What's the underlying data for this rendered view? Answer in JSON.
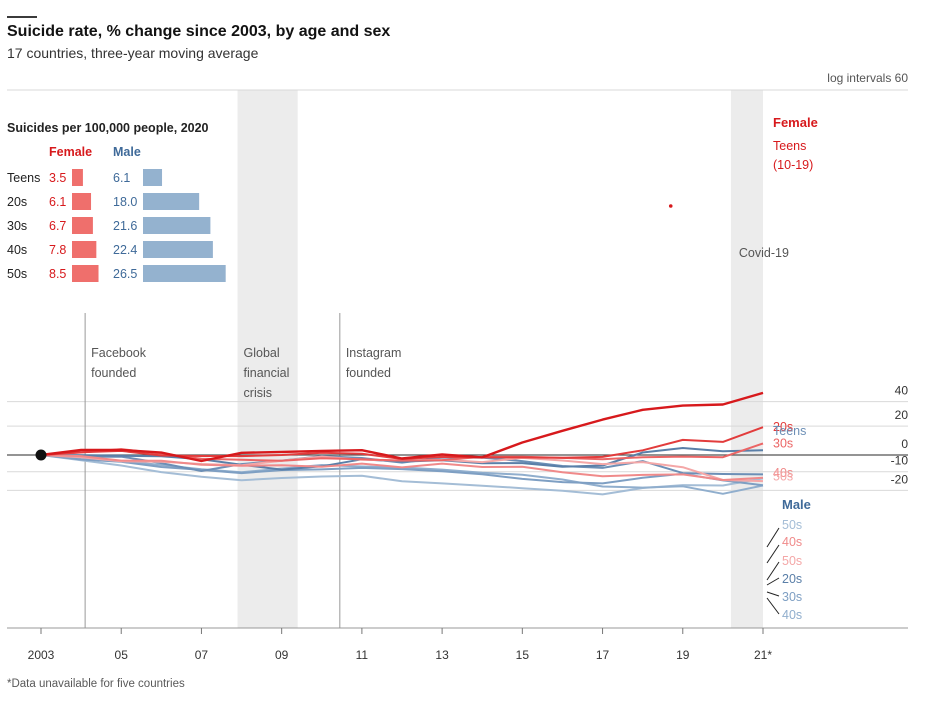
{
  "title": "Suicide rate, % change since 2003, by age and sex",
  "subtitle": "17 countries, three-year moving average",
  "footnote": "*Data unavailable for five countries",
  "colors": {
    "female": [
      "#d7191c",
      "#e23c3c",
      "#eb6565",
      "#f08a8a",
      "#f4a7a7"
    ],
    "male": [
      "#5a7fa8",
      "#6c8fb6",
      "#7e9fc3",
      "#90aecd",
      "#a4bdd6"
    ],
    "female_label": "#d7191c",
    "male_label": "#3f6a99",
    "bar_female": "#ef6f6c",
    "bar_male": "#94b2cf",
    "shade": "#ececec",
    "zero_line": "#555555",
    "grid": "#d9d9d9"
  },
  "chart_data": {
    "type": "line",
    "y_scale": "log",
    "y_axis_note": "log intervals 60",
    "y_ticks": [
      40,
      20,
      0,
      -10,
      -20
    ],
    "x_ticks": [
      "2003",
      "05",
      "07",
      "09",
      "11",
      "13",
      "15",
      "17",
      "19",
      "21*"
    ],
    "x": [
      2003,
      2004,
      2005,
      2006,
      2007,
      2008,
      2009,
      2010,
      2011,
      2012,
      2013,
      2014,
      2015,
      2016,
      2017,
      2018,
      2019,
      2020,
      2021
    ],
    "series": [
      {
        "name": "Teens (10-19)",
        "sex": "Female",
        "values": [
          0,
          3.2,
          3.3,
          1.5,
          -3.7,
          1.4,
          2.0,
          2.6,
          3.1,
          -2.2,
          0.3,
          -1.5,
          8.2,
          16.5,
          25.0,
          33.0,
          36.6,
          37.5,
          48.0
        ]
      },
      {
        "name": "20s",
        "sex": "Female",
        "values": [
          0,
          1.8,
          2.6,
          -0.3,
          -0.6,
          -0.7,
          0,
          1.4,
          0.8,
          -2.5,
          -1.2,
          -1.5,
          -1.5,
          -1.7,
          -1.2,
          3.0,
          10.0,
          8.6,
          19.2
        ]
      },
      {
        "name": "30s",
        "sex": "Female",
        "values": [
          0,
          1.6,
          3.8,
          0.9,
          -2.3,
          -3.0,
          -3.6,
          -2.0,
          -2.7,
          -3.5,
          -3.3,
          -1.1,
          -1.1,
          -1.8,
          -2.7,
          -1.4,
          -1.0,
          -1.4,
          7.5
        ]
      },
      {
        "name": "40s",
        "sex": "Female",
        "values": [
          0,
          -0.7,
          -3.5,
          -3.6,
          -6.0,
          -6.6,
          -6.3,
          -7.2,
          -5.3,
          -7.5,
          -5.3,
          -7.3,
          -7.2,
          -10.3,
          -12.6,
          -11.8,
          -11.5,
          -14.6,
          -13.4
        ]
      },
      {
        "name": "50s",
        "sex": "Female",
        "values": [
          0,
          -1.4,
          -3.9,
          -4.2,
          -5.5,
          -6.3,
          -3.6,
          -1.0,
          -3.0,
          -3.4,
          -3.0,
          -4.4,
          -1.8,
          -3.4,
          -5.6,
          -4.4,
          -7.4,
          -14.6,
          -15.2
        ]
      },
      {
        "name": "20s",
        "sex": "Male",
        "values": [
          0,
          -0.2,
          -0.5,
          -0.8,
          -2.7,
          -6.0,
          -8.8,
          -6.9,
          -2.7,
          -4.1,
          -3.3,
          -5.1,
          -5.0,
          -7.2,
          -6.4,
          1.6,
          4.5,
          2.4,
          3.1
        ]
      },
      {
        "name": "Teens",
        "sex": "Male",
        "values": [
          0,
          -1.2,
          -1.0,
          -5.0,
          -9.6,
          -5.6,
          -3.5,
          -0.7,
          -1.9,
          -4.7,
          -1.6,
          -1.6,
          -3.8,
          -6.7,
          -7.8,
          -3.8,
          -10.8,
          -11.3,
          -11.5
        ]
      },
      {
        "name": "30s",
        "sex": "Male",
        "values": [
          0,
          -2.8,
          -4.2,
          -7.3,
          -9.0,
          -10.8,
          -9.1,
          -8.7,
          -7.8,
          -8.5,
          -9.7,
          -11.4,
          -14.0,
          -15.7,
          -16.4,
          -13.4,
          -11.2,
          -14.8,
          -17.4
        ]
      },
      {
        "name": "40s",
        "sex": "Male",
        "values": [
          0,
          -1.6,
          -3.7,
          -6.1,
          -8.6,
          -10.3,
          -8.2,
          -6.1,
          -7.0,
          -7.6,
          -8.8,
          -10.6,
          -11.7,
          -14.3,
          -18.0,
          -18.6,
          -17.9,
          -21.7,
          -17.5
        ]
      },
      {
        "name": "50s",
        "sex": "Male",
        "values": [
          0,
          -3.2,
          -6.4,
          -10.2,
          -12.8,
          -14.7,
          -13.5,
          -12.7,
          -12.3,
          -15.3,
          -16.4,
          -17.6,
          -18.9,
          -20.2,
          -22.0,
          -18.8,
          -17.3,
          -17.5,
          -13.7
        ]
      }
    ],
    "shaded_periods": [
      {
        "label": "Global\nfinancial\ncrisis",
        "x0": 2007.9,
        "x1": 2009.4
      },
      {
        "label": "Covid-19",
        "x0": 2020.2,
        "x1": 2021
      }
    ],
    "event_lines": [
      {
        "label": "Facebook\nfounded",
        "x": 2004.1
      },
      {
        "label": "Instagram\nfounded",
        "x": 2010.45
      }
    ],
    "legend": {
      "female": "Female",
      "male": "Male"
    },
    "end_labels_female": [
      {
        "text": "Teens\n(10-19)",
        "y": 48
      },
      {
        "text": "20s",
        "y": 19.2
      },
      {
        "text": "30s",
        "y": 7.5
      },
      {
        "text": "40s",
        "y": -10.8
      },
      {
        "text": "50s",
        "y": -12.8
      }
    ],
    "end_labels_male": [
      {
        "text": "Teens",
        "y": 3.1
      },
      {
        "text": "50s",
        "y": -8.8
      },
      {
        "text": "20s",
        "y": -15.3
      },
      {
        "text": "30s",
        "y": -17.7
      },
      {
        "text": "40s",
        "y": -19.8
      }
    ],
    "inset_table": {
      "title": "Suicides per 100,000 people, 2020",
      "header_female": "Female",
      "header_male": "Male",
      "rows": [
        {
          "age": "Teens",
          "female": 3.5,
          "male": 6.1
        },
        {
          "age": "20s",
          "female": 6.1,
          "male": 18.0
        },
        {
          "age": "30s",
          "female": 6.7,
          "male": 21.6
        },
        {
          "age": "40s",
          "female": 7.8,
          "male": 22.4
        },
        {
          "age": "50s",
          "female": 8.5,
          "male": 26.5
        }
      ]
    }
  }
}
